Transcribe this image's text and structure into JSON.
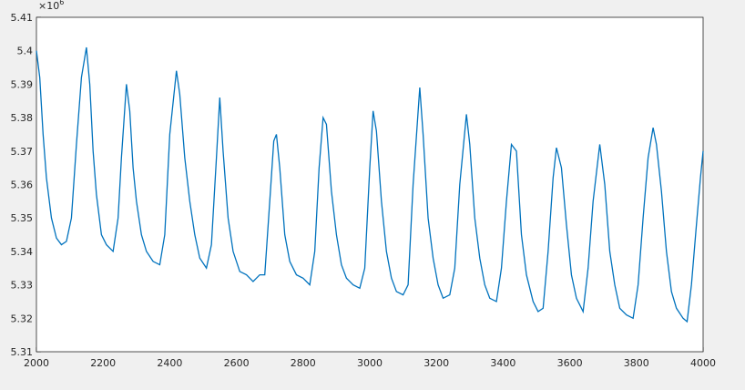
{
  "chart_data": {
    "type": "line",
    "y_exponent_base": "×10",
    "y_exponent": "6",
    "x": [
      2000,
      2010,
      2020,
      2030,
      2045,
      2060,
      2075,
      2090,
      2105,
      2120,
      2135,
      2150,
      2160,
      2170,
      2180,
      2195,
      2210,
      2230,
      2245,
      2255,
      2270,
      2280,
      2290,
      2300,
      2315,
      2330,
      2350,
      2370,
      2385,
      2400,
      2420,
      2430,
      2445,
      2460,
      2475,
      2490,
      2510,
      2525,
      2540,
      2550,
      2560,
      2575,
      2590,
      2610,
      2630,
      2650,
      2670,
      2685,
      2700,
      2712,
      2720,
      2730,
      2745,
      2760,
      2780,
      2800,
      2820,
      2835,
      2848,
      2860,
      2870,
      2885,
      2900,
      2915,
      2930,
      2950,
      2970,
      2985,
      3000,
      3010,
      3020,
      3035,
      3050,
      3065,
      3080,
      3100,
      3115,
      3130,
      3150,
      3160,
      3175,
      3190,
      3205,
      3220,
      3240,
      3255,
      3270,
      3290,
      3300,
      3315,
      3330,
      3345,
      3360,
      3380,
      3395,
      3410,
      3425,
      3440,
      3455,
      3470,
      3490,
      3505,
      3520,
      3535,
      3550,
      3560,
      3575,
      3590,
      3605,
      3620,
      3640,
      3655,
      3670,
      3690,
      3705,
      3720,
      3735,
      3750,
      3770,
      3790,
      3805,
      3820,
      3835,
      3850,
      3860,
      3875,
      3890,
      3905,
      3920,
      3940,
      3952,
      3965,
      3980,
      3992,
      4000
    ],
    "series": [
      {
        "color": "#0072bd",
        "values": [
          5.4,
          5.392,
          5.375,
          5.362,
          5.35,
          5.344,
          5.342,
          5.343,
          5.35,
          5.372,
          5.392,
          5.401,
          5.39,
          5.37,
          5.357,
          5.345,
          5.342,
          5.34,
          5.35,
          5.368,
          5.39,
          5.382,
          5.365,
          5.355,
          5.345,
          5.34,
          5.337,
          5.336,
          5.345,
          5.375,
          5.394,
          5.387,
          5.368,
          5.355,
          5.345,
          5.338,
          5.335,
          5.342,
          5.368,
          5.386,
          5.37,
          5.35,
          5.34,
          5.334,
          5.333,
          5.331,
          5.333,
          5.333,
          5.355,
          5.373,
          5.375,
          5.365,
          5.345,
          5.337,
          5.333,
          5.332,
          5.33,
          5.34,
          5.365,
          5.38,
          5.378,
          5.358,
          5.345,
          5.336,
          5.332,
          5.33,
          5.329,
          5.335,
          5.365,
          5.382,
          5.376,
          5.355,
          5.34,
          5.332,
          5.328,
          5.327,
          5.33,
          5.36,
          5.389,
          5.375,
          5.35,
          5.338,
          5.33,
          5.326,
          5.327,
          5.335,
          5.36,
          5.381,
          5.372,
          5.35,
          5.338,
          5.33,
          5.326,
          5.325,
          5.335,
          5.355,
          5.372,
          5.37,
          5.345,
          5.333,
          5.325,
          5.322,
          5.323,
          5.34,
          5.362,
          5.371,
          5.365,
          5.348,
          5.333,
          5.326,
          5.322,
          5.335,
          5.355,
          5.372,
          5.36,
          5.34,
          5.33,
          5.323,
          5.321,
          5.32,
          5.33,
          5.35,
          5.368,
          5.377,
          5.372,
          5.358,
          5.34,
          5.328,
          5.323,
          5.32,
          5.319,
          5.33,
          5.348,
          5.362,
          5.37
        ]
      }
    ],
    "xlim": [
      2000,
      4000
    ],
    "xticks": [
      2000,
      2200,
      2400,
      2600,
      2800,
      3000,
      3200,
      3400,
      3600,
      3800,
      4000
    ],
    "ylim": [
      5.31,
      5.41
    ],
    "yticks": [
      5.31,
      5.32,
      5.33,
      5.34,
      5.35,
      5.36,
      5.37,
      5.38,
      5.39,
      5.4,
      5.41
    ],
    "grid": true
  }
}
